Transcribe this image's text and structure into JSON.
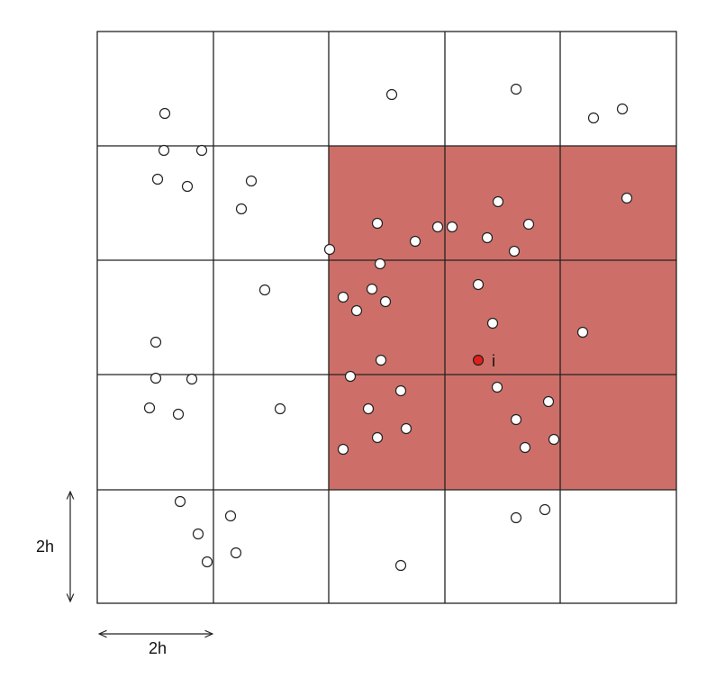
{
  "point_label": "i",
  "vertical_scale_label": "2h",
  "horizontal_scale_label": "2h"
}
